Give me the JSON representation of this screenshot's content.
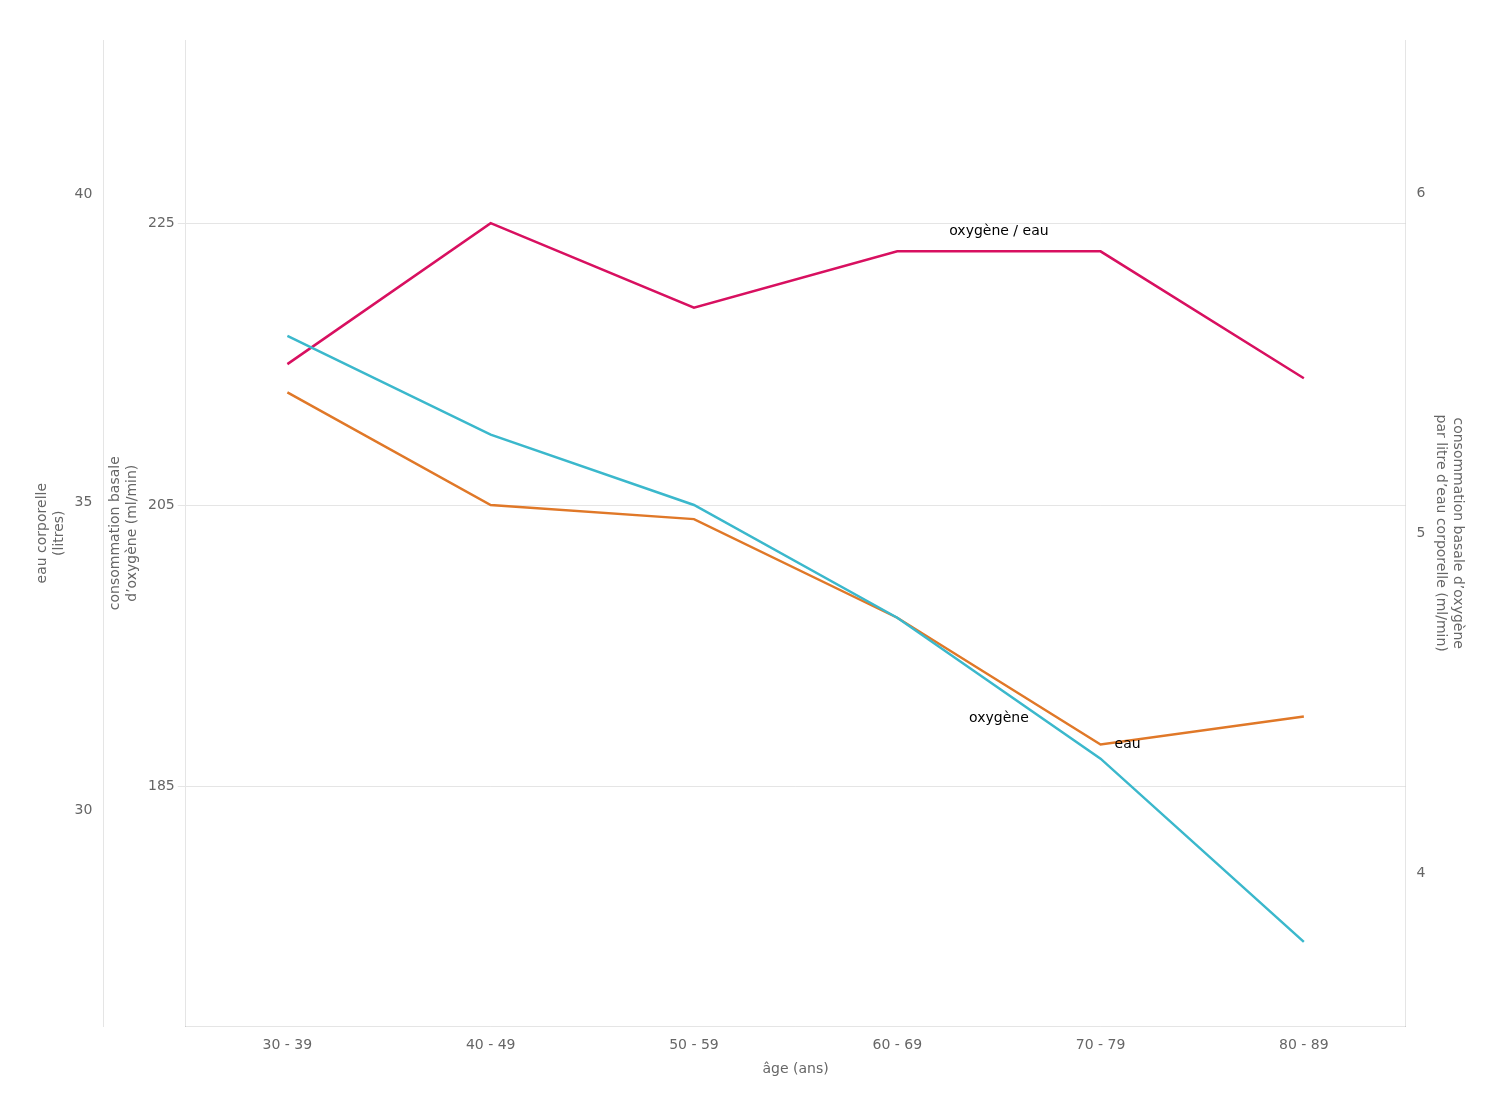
{
  "chart_data": {
    "type": "line",
    "categories": [
      "30 - 39",
      "40 - 49",
      "50 - 59",
      "60 - 69",
      "70 - 79",
      "80 - 89"
    ],
    "xlabel": "âge (ans)",
    "ylabel": [
      "consommation basale",
      "d’oxygène (ml/min)"
    ],
    "ylim": [
      168,
      238
    ],
    "yticks": [
      185,
      205,
      225
    ],
    "y2label": [
      "consommation basale d’oxygène",
      "par litre d’eau corporelle (ml/min)"
    ],
    "y2lim": [
      3.55,
      6.45
    ],
    "y2ticks": [
      4,
      5,
      6
    ],
    "y3label": [
      "eau corporelle",
      "(litres)"
    ],
    "y3lim": [
      26.5,
      42.5
    ],
    "y3ticks": [
      30,
      35,
      40
    ],
    "grid": true,
    "marker": "none",
    "series": [
      {
        "name": "oxygène",
        "color": "#3BB8CC",
        "values": [
          217,
          210,
          205,
          197,
          187,
          174
        ]
      },
      {
        "name": "eau",
        "color": "#E07828",
        "values": [
          213,
          205,
          204,
          197,
          188,
          190
        ]
      },
      {
        "name": "oxygène / eau",
        "color": "#D81060",
        "values": [
          215,
          225,
          219,
          223,
          223,
          214
        ]
      }
    ]
  }
}
